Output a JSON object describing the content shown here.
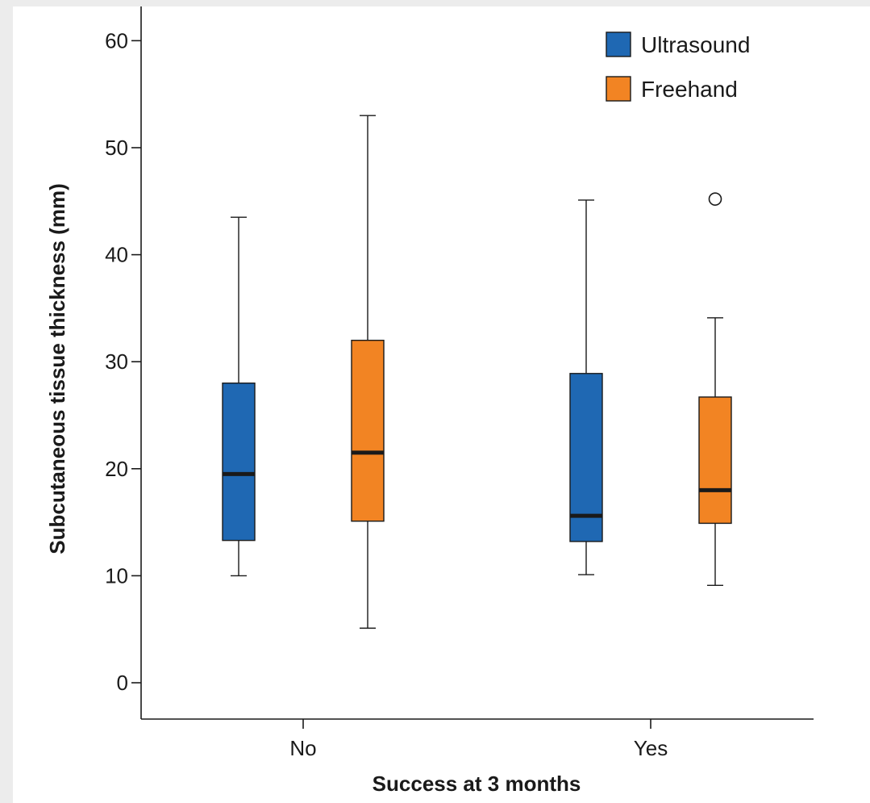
{
  "chart_data": {
    "type": "boxplot",
    "xlabel": "Success at 3 months",
    "ylabel": "Subcutaneous tissue thickness (mm)",
    "categories": [
      "No",
      "Yes"
    ],
    "ylim": [
      -3,
      63
    ],
    "yticks": [
      0,
      10,
      20,
      30,
      40,
      50,
      60
    ],
    "grid": false,
    "legend_position": "top-right",
    "series": [
      {
        "name": "Ultrasound",
        "color": "#1f68b3",
        "boxes": [
          {
            "category": "No",
            "whisker_low": 10.0,
            "q1": 13.3,
            "median": 19.5,
            "q3": 28.0,
            "whisker_high": 43.5,
            "outliers": []
          },
          {
            "category": "Yes",
            "whisker_low": 10.1,
            "q1": 13.2,
            "median": 15.6,
            "q3": 28.9,
            "whisker_high": 45.1,
            "outliers": []
          }
        ]
      },
      {
        "name": "Freehand",
        "color": "#f28423",
        "boxes": [
          {
            "category": "No",
            "whisker_low": 5.1,
            "q1": 15.1,
            "median": 21.5,
            "q3": 32.0,
            "whisker_high": 53.0,
            "outliers": []
          },
          {
            "category": "Yes",
            "whisker_low": 9.1,
            "q1": 14.9,
            "median": 18.0,
            "q3": 26.7,
            "whisker_high": 34.1,
            "outliers": [
              45.2
            ]
          }
        ]
      }
    ]
  }
}
